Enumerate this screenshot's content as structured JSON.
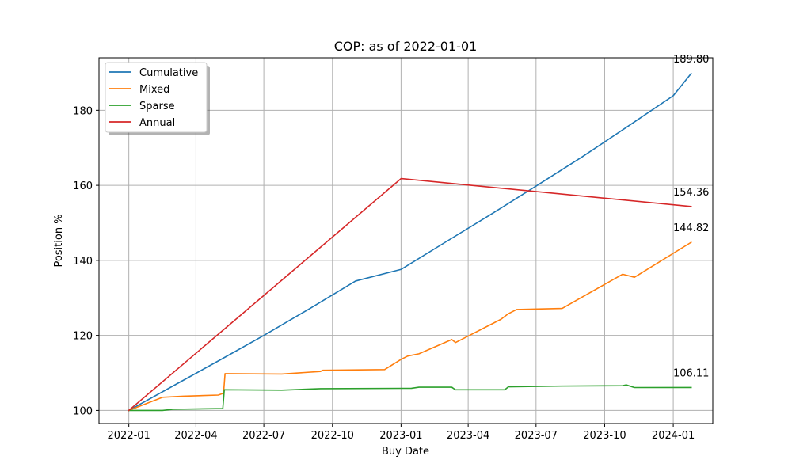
{
  "chart_data": {
    "type": "line",
    "title": "COP: as of 2022-01-01",
    "xlabel": "Buy Date",
    "ylabel": "Position %",
    "x_range": [
      "2021-11-22",
      "2024-02-23"
    ],
    "ylim": [
      96.5,
      194
    ],
    "grid": true,
    "legend_position": "top-left",
    "x_ticks": [
      "2022-01",
      "2022-04",
      "2022-07",
      "2022-10",
      "2023-01",
      "2023-04",
      "2023-07",
      "2023-10",
      "2024-01"
    ],
    "y_ticks": [
      100,
      120,
      140,
      160,
      180
    ],
    "series": [
      {
        "name": "Cumulative",
        "color": "#1f77b4",
        "points": [
          [
            "2022-01-01",
            100
          ],
          [
            "2022-03-01",
            106.5
          ],
          [
            "2022-05-01",
            113.2
          ],
          [
            "2022-07-01",
            120.0
          ],
          [
            "2022-09-01",
            127.2
          ],
          [
            "2022-11-01",
            134.5
          ],
          [
            "2023-01-01",
            137.6
          ],
          [
            "2023-03-01",
            144.8
          ],
          [
            "2023-05-01",
            152.2
          ],
          [
            "2023-07-01",
            159.8
          ],
          [
            "2023-09-01",
            167.6
          ],
          [
            "2023-11-01",
            175.7
          ],
          [
            "2024-01-01",
            183.9
          ],
          [
            "2024-01-25",
            189.8
          ]
        ]
      },
      {
        "name": "Mixed",
        "color": "#ff7f0e",
        "points": [
          [
            "2022-01-01",
            100
          ],
          [
            "2022-02-15",
            103.5
          ],
          [
            "2022-03-15",
            103.8
          ],
          [
            "2022-05-01",
            104.1
          ],
          [
            "2022-05-08",
            104.6
          ],
          [
            "2022-05-10",
            109.8
          ],
          [
            "2022-07-25",
            109.7
          ],
          [
            "2022-09-15",
            110.4
          ],
          [
            "2022-09-18",
            110.7
          ],
          [
            "2022-12-10",
            110.9
          ],
          [
            "2023-01-01",
            113.6
          ],
          [
            "2023-01-10",
            114.5
          ],
          [
            "2023-01-25",
            115.1
          ],
          [
            "2023-03-10",
            118.9
          ],
          [
            "2023-03-15",
            118.1
          ],
          [
            "2023-05-15",
            124.3
          ],
          [
            "2023-05-25",
            125.8
          ],
          [
            "2023-06-05",
            126.9
          ],
          [
            "2023-08-05",
            127.2
          ],
          [
            "2023-10-25",
            136.3
          ],
          [
            "2023-11-10",
            135.5
          ],
          [
            "2024-01-25",
            144.82
          ]
        ]
      },
      {
        "name": "Sparse",
        "color": "#2ca02c",
        "points": [
          [
            "2022-01-01",
            100
          ],
          [
            "2022-02-15",
            100.0
          ],
          [
            "2022-03-01",
            100.3
          ],
          [
            "2022-05-07",
            100.5
          ],
          [
            "2022-05-09",
            105.5
          ],
          [
            "2022-07-25",
            105.4
          ],
          [
            "2022-09-15",
            105.8
          ],
          [
            "2023-01-15",
            105.9
          ],
          [
            "2023-01-25",
            106.2
          ],
          [
            "2023-03-10",
            106.2
          ],
          [
            "2023-03-15",
            105.5
          ],
          [
            "2023-05-20",
            105.5
          ],
          [
            "2023-05-25",
            106.3
          ],
          [
            "2023-08-05",
            106.5
          ],
          [
            "2023-10-25",
            106.6
          ],
          [
            "2023-10-30",
            106.8
          ],
          [
            "2023-11-10",
            106.1
          ],
          [
            "2024-01-25",
            106.11
          ]
        ]
      },
      {
        "name": "Annual",
        "color": "#d62728",
        "points": [
          [
            "2022-01-01",
            100
          ],
          [
            "2023-01-01",
            161.8
          ],
          [
            "2024-01-25",
            154.36
          ]
        ]
      }
    ],
    "annotations": [
      {
        "x": "2024-01-25",
        "y": 189.8,
        "text": "189.80"
      },
      {
        "x": "2024-01-25",
        "y": 154.36,
        "text": "154.36"
      },
      {
        "x": "2024-01-25",
        "y": 144.82,
        "text": "144.82"
      },
      {
        "x": "2024-01-25",
        "y": 106.11,
        "text": "106.11"
      }
    ]
  }
}
